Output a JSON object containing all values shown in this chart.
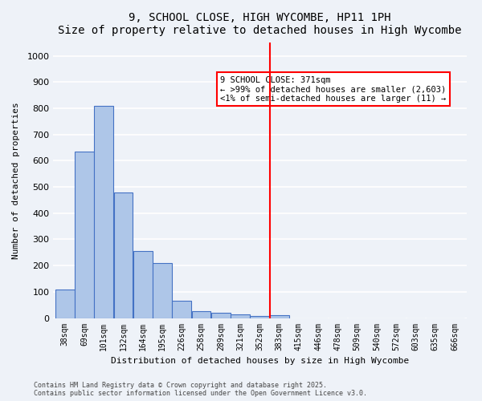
{
  "title": "9, SCHOOL CLOSE, HIGH WYCOMBE, HP11 1PH",
  "subtitle": "Size of property relative to detached houses in High Wycombe",
  "xlabel": "Distribution of detached houses by size in High Wycombe",
  "ylabel": "Number of detached properties",
  "bins": [
    "38sqm",
    "69sqm",
    "101sqm",
    "132sqm",
    "164sqm",
    "195sqm",
    "226sqm",
    "258sqm",
    "289sqm",
    "321sqm",
    "352sqm",
    "383sqm",
    "415sqm",
    "446sqm",
    "478sqm",
    "509sqm",
    "540sqm",
    "572sqm",
    "603sqm",
    "635sqm",
    "666sqm"
  ],
  "bar_heights": [
    110,
    635,
    810,
    480,
    255,
    210,
    65,
    27,
    20,
    14,
    8,
    10,
    0,
    0,
    0,
    0,
    0,
    0,
    0,
    0,
    0
  ],
  "bar_color": "#aec6e8",
  "bar_edge_color": "#4472c4",
  "vline_x_index": 11,
  "vline_color": "red",
  "annotation_text": "9 SCHOOL CLOSE: 371sqm\n← >99% of detached houses are smaller (2,603)\n<1% of semi-detached houses are larger (11) →",
  "annotation_box_color": "white",
  "annotation_box_edge": "red",
  "ylim": [
    0,
    1050
  ],
  "yticks": [
    0,
    100,
    200,
    300,
    400,
    500,
    600,
    700,
    800,
    900,
    1000
  ],
  "background_color": "#eef2f8",
  "grid_color": "white",
  "footer_text": "Contains HM Land Registry data © Crown copyright and database right 2025.\nContains public sector information licensed under the Open Government Licence v3.0."
}
